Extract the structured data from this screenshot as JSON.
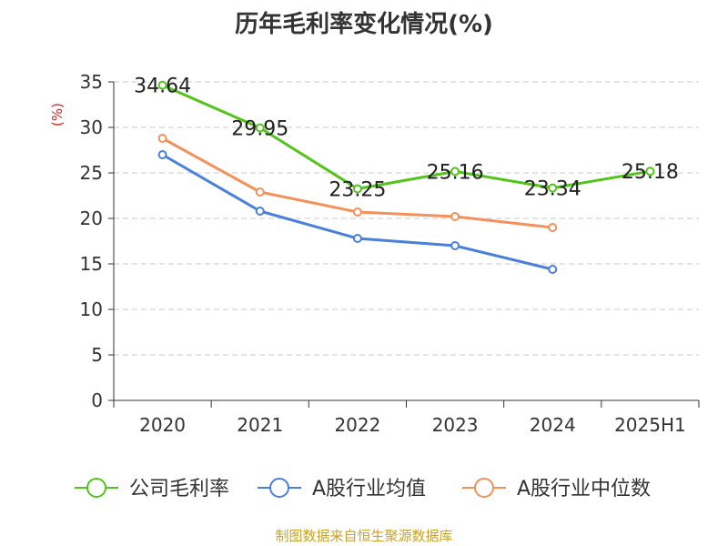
{
  "chart_data": {
    "type": "line",
    "title": "历年毛利率变化情况(%)",
    "ylabel": "(%)",
    "xlabel": "",
    "categories": [
      "2020",
      "2021",
      "2022",
      "2023",
      "2024",
      "2025H1"
    ],
    "ylim": [
      0,
      35
    ],
    "yticks": [
      0,
      5,
      10,
      15,
      20,
      25,
      30,
      35
    ],
    "grid": true,
    "legend_position": "bottom",
    "series": [
      {
        "name": "公司毛利率",
        "color": "#52c41a",
        "values": [
          34.64,
          29.95,
          23.25,
          25.16,
          23.34,
          25.18
        ],
        "data_labels": [
          "34.64",
          "29.95",
          "23.25",
          "25.16",
          "23.34",
          "25.18"
        ]
      },
      {
        "name": "A股行业均值",
        "color": "#4a7fdc",
        "values": [
          27.0,
          20.8,
          17.8,
          17.0,
          14.4,
          null
        ]
      },
      {
        "name": "A股行业中位数",
        "color": "#f4915a",
        "values": [
          28.8,
          22.9,
          20.7,
          20.2,
          19.0,
          null
        ]
      }
    ]
  },
  "footer": {
    "source": "制图数据来自恒生聚源数据库"
  }
}
